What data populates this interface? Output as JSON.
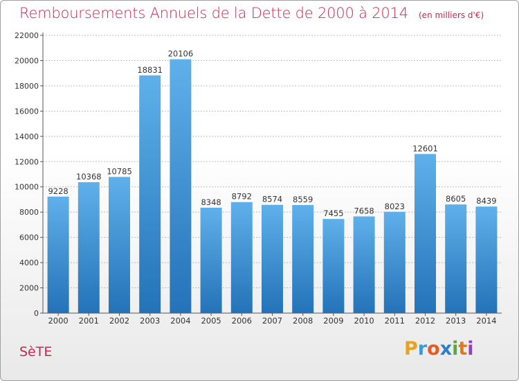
{
  "header": {
    "title": "Remboursements Annuels de la Dette de 2000 à 2014",
    "subtitle": "(en milliers d'€)"
  },
  "footer": {
    "city": "SèTE",
    "logo": "Proxiti"
  },
  "colors": {
    "title": "#c8284e",
    "bar_top": "#5fb0ea",
    "bar_bottom": "#2472b8",
    "grid": "#bbbbbb"
  },
  "chart_data": {
    "type": "bar",
    "title": "Remboursements Annuels de la Dette de 2000 à 2014",
    "subtitle": "(en milliers d'€)",
    "xlabel": "",
    "ylabel": "",
    "categories": [
      "2000",
      "2001",
      "2002",
      "2003",
      "2004",
      "2005",
      "2006",
      "2007",
      "2008",
      "2009",
      "2010",
      "2011",
      "2012",
      "2013",
      "2014"
    ],
    "values": [
      9228,
      10368,
      10785,
      18831,
      20106,
      8348,
      8792,
      8574,
      8559,
      7455,
      7658,
      8023,
      12601,
      8605,
      8439
    ],
    "ylim": [
      0,
      22000
    ],
    "yticks": [
      0,
      2000,
      4000,
      6000,
      8000,
      10000,
      12000,
      14000,
      16000,
      18000,
      20000,
      22000
    ],
    "grid": true,
    "data_labels": true
  }
}
